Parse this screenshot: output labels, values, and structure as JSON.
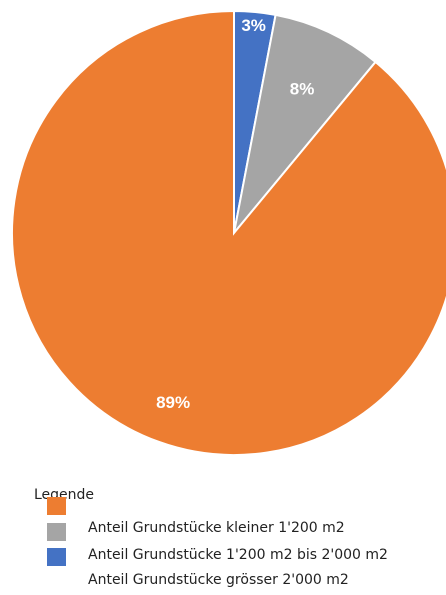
{
  "chart_data": {
    "type": "pie",
    "slices": [
      {
        "label": "Anteil Grundstücke 1'200 m2 bis 2'000 m2",
        "value": 3,
        "display": "3%",
        "color": "#4472c4"
      },
      {
        "label": "Anteil Grundstücke kleiner 1'200 m2",
        "value": 8,
        "display": "8%",
        "color": "#a5a5a5"
      },
      {
        "label": "Anteil Grundstücke grösser 2'000 m2",
        "value": 89,
        "display": "89%",
        "color": "#ed7d31"
      }
    ],
    "legend": {
      "title": "Legende",
      "entries": [
        {
          "label": "Anteil Grundstücke kleiner 1'200 m2",
          "color": "#a5a5a5"
        },
        {
          "label": "Anteil Grundstücke 1'200 m2 bis 2'000 m2",
          "color": "#4472c4"
        },
        {
          "label": "Anteil Grundstücke grösser 2'000 m2",
          "color": "#ed7d31"
        }
      ],
      "placement": "bottom-left"
    }
  }
}
